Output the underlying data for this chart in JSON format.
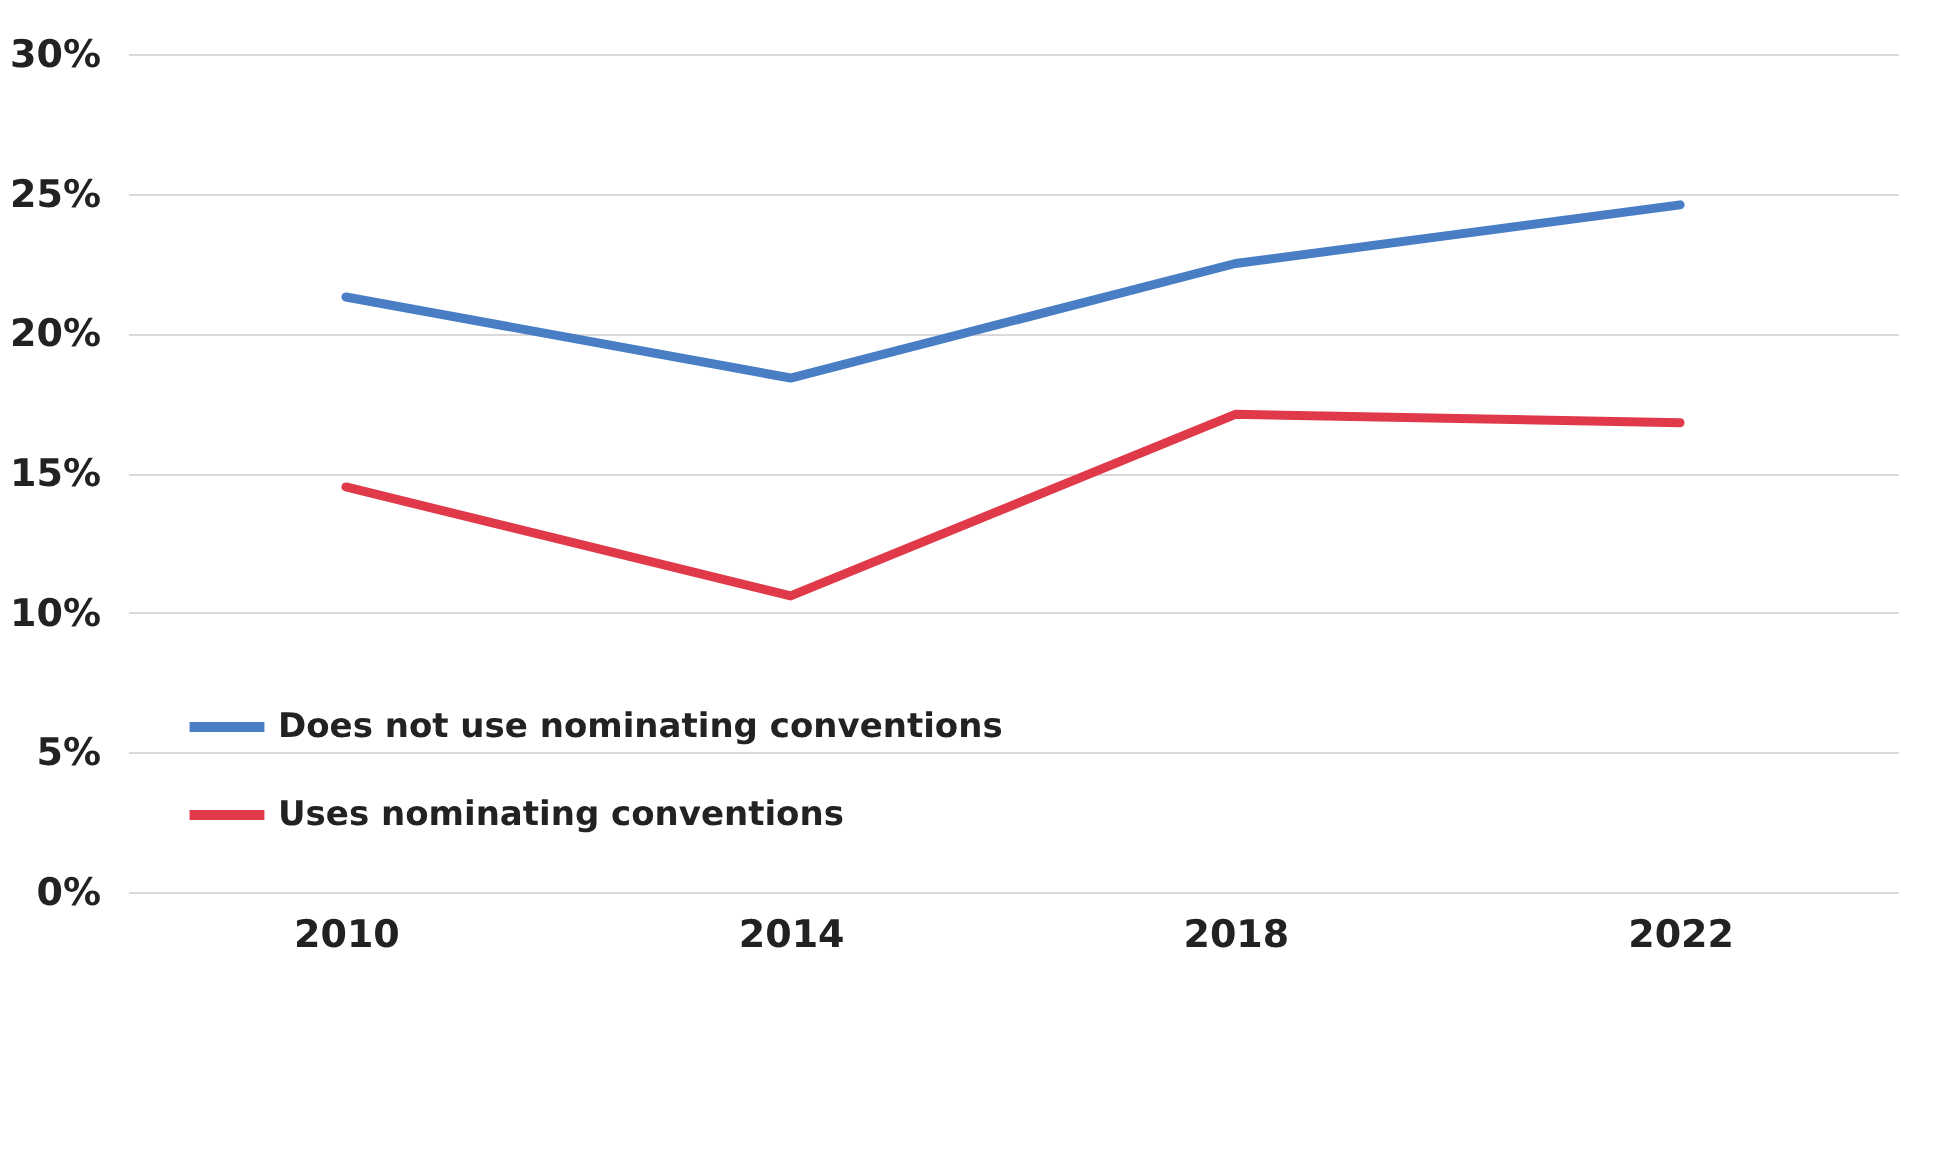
{
  "chart_data": {
    "type": "line",
    "categories": [
      "2010",
      "2014",
      "2018",
      "2022"
    ],
    "series": [
      {
        "name": "Does not use nominating conventions",
        "color": "#4a7ec4",
        "values": [
          21.3,
          18.4,
          22.5,
          24.6
        ]
      },
      {
        "name": "Uses nominating conventions",
        "color": "#e03a4a",
        "values": [
          14.5,
          10.6,
          17.1,
          16.8
        ]
      }
    ],
    "ylim": [
      0,
      30
    ],
    "yticks": [
      {
        "value": 0,
        "label": "0%"
      },
      {
        "value": 5,
        "label": "5%"
      },
      {
        "value": 10,
        "label": "10%"
      },
      {
        "value": 15,
        "label": "15%"
      },
      {
        "value": 20,
        "label": "20%"
      },
      {
        "value": 25,
        "label": "25%"
      },
      {
        "value": 30,
        "label": "30%"
      }
    ],
    "grid": "y",
    "legend": "bottom left",
    "marker": "none",
    "line_style": "solid"
  }
}
